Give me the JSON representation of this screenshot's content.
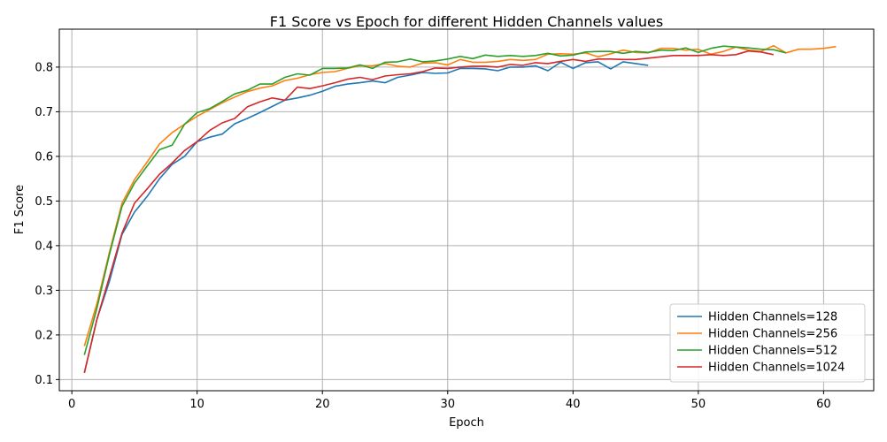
{
  "chart_data": {
    "type": "line",
    "title": "F1 Score vs Epoch for different Hidden Channels values",
    "xlabel": "Epoch",
    "ylabel": "F1 Score",
    "xlim": [
      -1.0,
      64.0
    ],
    "ylim": [
      0.075,
      0.885
    ],
    "xticks": [
      0,
      10,
      20,
      30,
      40,
      50,
      60
    ],
    "yticks": [
      0.1,
      0.2,
      0.3,
      0.4,
      0.5,
      0.6,
      0.7,
      0.8
    ],
    "grid": true,
    "legend_position": "lower-right",
    "series": [
      {
        "name": "Hidden Channels=128",
        "color": "#1f77b4",
        "x": [
          1,
          2,
          3,
          4,
          5,
          6,
          7,
          8,
          9,
          10,
          11,
          12,
          13,
          14,
          15,
          16,
          17,
          18,
          19,
          20,
          21,
          22,
          23,
          24,
          25,
          26,
          27,
          28,
          29,
          30,
          31,
          32,
          33,
          34,
          35,
          36,
          37,
          38,
          39,
          40,
          41,
          42,
          43,
          44,
          45,
          46
        ],
        "y": [
          0.115,
          0.235,
          0.32,
          0.425,
          0.475,
          0.51,
          0.55,
          0.582,
          0.6,
          0.633,
          0.643,
          0.65,
          0.673,
          0.685,
          0.698,
          0.712,
          0.726,
          0.731,
          0.737,
          0.746,
          0.757,
          0.762,
          0.765,
          0.769,
          0.765,
          0.777,
          0.782,
          0.788,
          0.786,
          0.787,
          0.797,
          0.797,
          0.796,
          0.792,
          0.8,
          0.8,
          0.803,
          0.792,
          0.811,
          0.797,
          0.81,
          0.812,
          0.796,
          0.812,
          0.808,
          0.804
        ]
      },
      {
        "name": "Hidden Channels=256",
        "color": "#ff7f0e",
        "x": [
          1,
          2,
          3,
          4,
          5,
          6,
          7,
          8,
          9,
          10,
          11,
          12,
          13,
          14,
          15,
          16,
          17,
          18,
          19,
          20,
          21,
          22,
          23,
          24,
          25,
          26,
          27,
          28,
          29,
          30,
          31,
          32,
          33,
          34,
          35,
          36,
          37,
          38,
          39,
          40,
          41,
          42,
          43,
          44,
          45,
          46,
          47,
          48,
          49,
          50,
          51,
          52,
          53,
          54,
          55,
          56,
          57,
          58,
          59,
          60,
          61
        ],
        "y": [
          0.175,
          0.27,
          0.385,
          0.495,
          0.548,
          0.587,
          0.628,
          0.653,
          0.672,
          0.69,
          0.705,
          0.72,
          0.733,
          0.745,
          0.753,
          0.758,
          0.77,
          0.775,
          0.783,
          0.788,
          0.79,
          0.797,
          0.803,
          0.803,
          0.808,
          0.802,
          0.8,
          0.809,
          0.81,
          0.805,
          0.817,
          0.811,
          0.811,
          0.813,
          0.817,
          0.815,
          0.817,
          0.829,
          0.83,
          0.829,
          0.832,
          0.823,
          0.83,
          0.838,
          0.833,
          0.832,
          0.842,
          0.842,
          0.838,
          0.84,
          0.829,
          0.835,
          0.845,
          0.838,
          0.835,
          0.848,
          0.832,
          0.84,
          0.84,
          0.842,
          0.846
        ]
      },
      {
        "name": "Hidden Channels=512",
        "color": "#2ca02c",
        "x": [
          1,
          2,
          3,
          4,
          5,
          6,
          7,
          8,
          9,
          10,
          11,
          12,
          13,
          14,
          15,
          16,
          17,
          18,
          19,
          20,
          21,
          22,
          23,
          24,
          25,
          26,
          27,
          28,
          29,
          30,
          31,
          32,
          33,
          34,
          35,
          36,
          37,
          38,
          39,
          40,
          41,
          42,
          43,
          44,
          45,
          46,
          47,
          48,
          49,
          50,
          51,
          52,
          53,
          54,
          55,
          56,
          57
        ],
        "y": [
          0.155,
          0.26,
          0.38,
          0.488,
          0.54,
          0.578,
          0.615,
          0.625,
          0.672,
          0.698,
          0.707,
          0.723,
          0.74,
          0.748,
          0.762,
          0.762,
          0.777,
          0.785,
          0.782,
          0.797,
          0.797,
          0.798,
          0.805,
          0.797,
          0.811,
          0.812,
          0.818,
          0.812,
          0.814,
          0.818,
          0.824,
          0.819,
          0.827,
          0.824,
          0.826,
          0.824,
          0.826,
          0.831,
          0.825,
          0.827,
          0.834,
          0.835,
          0.835,
          0.831,
          0.835,
          0.833,
          0.838,
          0.837,
          0.843,
          0.833,
          0.842,
          0.847,
          0.845,
          0.843,
          0.84,
          0.839,
          0.832
        ]
      },
      {
        "name": "Hidden Channels=1024",
        "color": "#d62728",
        "x": [
          1,
          2,
          3,
          4,
          5,
          6,
          7,
          8,
          9,
          10,
          11,
          12,
          13,
          14,
          15,
          16,
          17,
          18,
          19,
          20,
          21,
          22,
          23,
          24,
          25,
          26,
          27,
          28,
          29,
          30,
          31,
          32,
          33,
          34,
          35,
          36,
          37,
          38,
          39,
          40,
          41,
          42,
          43,
          44,
          45,
          46,
          47,
          48,
          49,
          50,
          51,
          52,
          53,
          54,
          55,
          56
        ],
        "y": [
          0.115,
          0.235,
          0.33,
          0.428,
          0.495,
          0.527,
          0.56,
          0.585,
          0.613,
          0.633,
          0.658,
          0.675,
          0.685,
          0.711,
          0.722,
          0.731,
          0.726,
          0.755,
          0.752,
          0.758,
          0.765,
          0.773,
          0.777,
          0.772,
          0.78,
          0.783,
          0.785,
          0.79,
          0.798,
          0.797,
          0.8,
          0.802,
          0.802,
          0.8,
          0.806,
          0.804,
          0.81,
          0.808,
          0.813,
          0.817,
          0.813,
          0.818,
          0.818,
          0.817,
          0.817,
          0.82,
          0.823,
          0.826,
          0.826,
          0.826,
          0.828,
          0.826,
          0.828,
          0.836,
          0.834,
          0.828
        ]
      }
    ]
  }
}
